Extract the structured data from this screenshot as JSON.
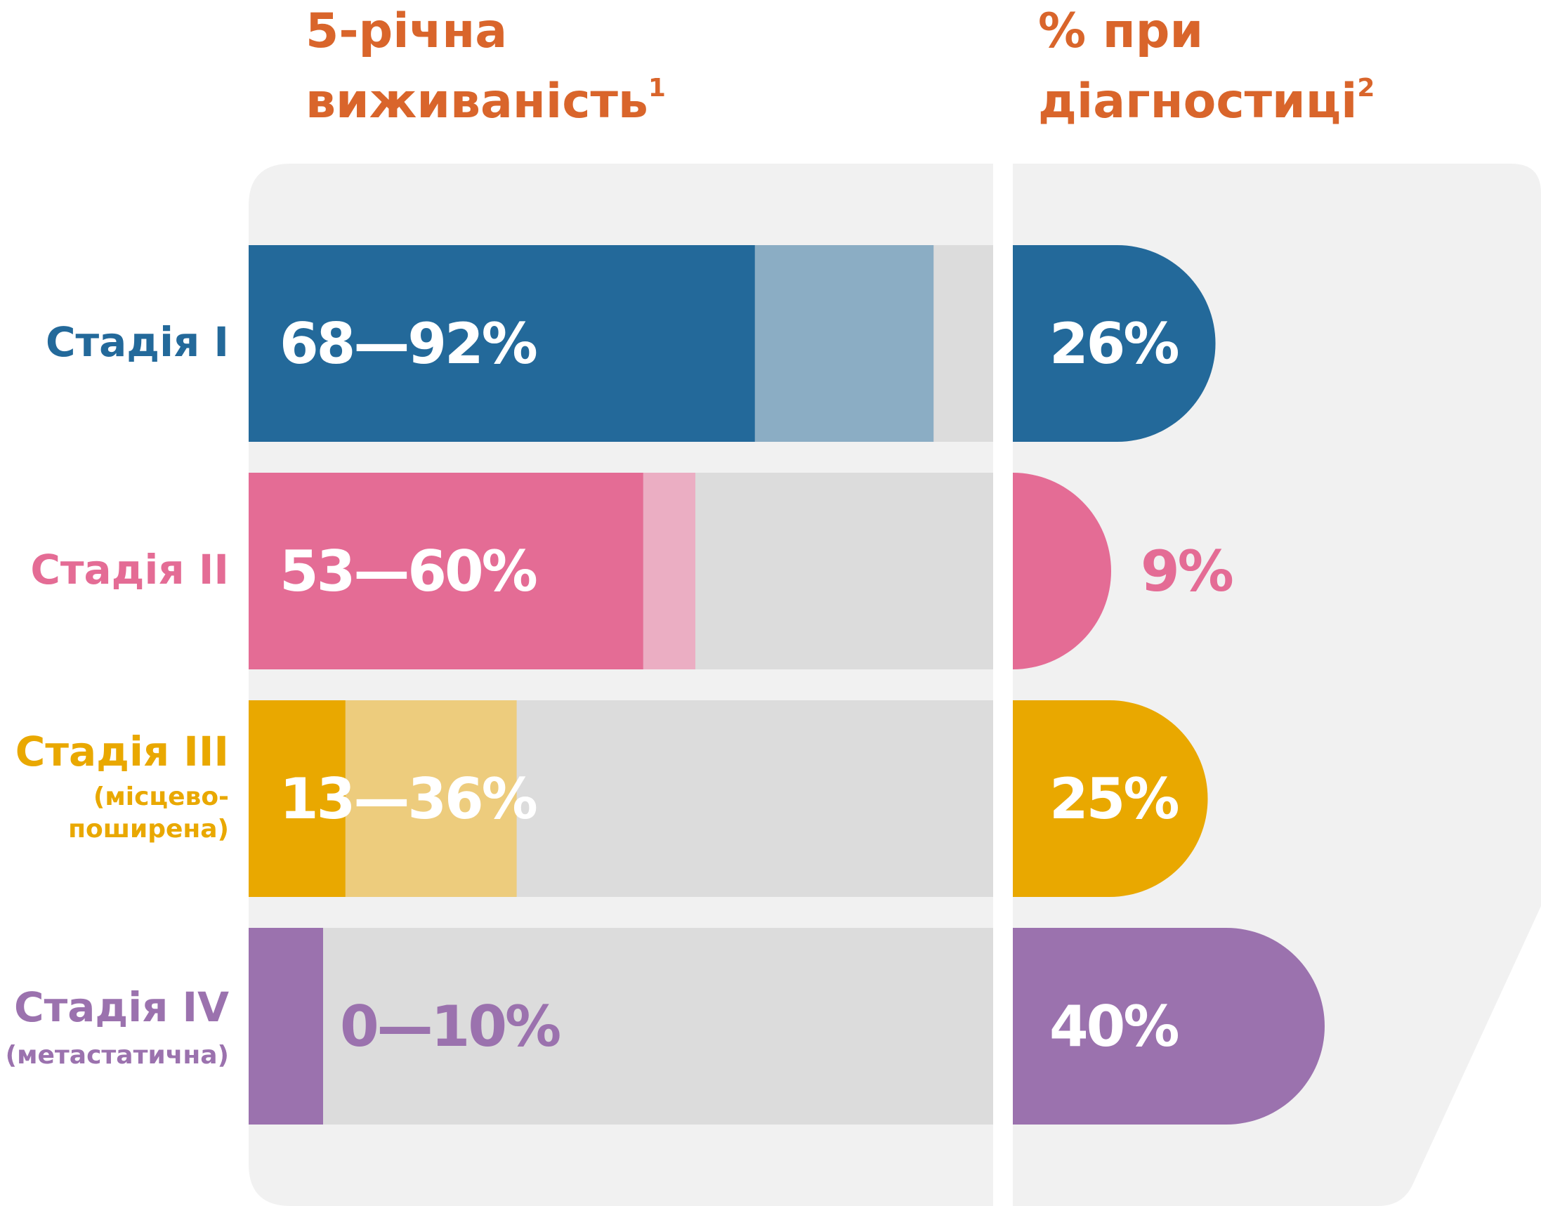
{
  "headers": {
    "survival_line1": "5-річна",
    "survival_line2": "виживаність",
    "survival_sup": "1",
    "diagnosis_line1": "% при",
    "diagnosis_line2": "діагностиці",
    "diagnosis_sup": "2"
  },
  "stages": [
    {
      "label": "Стадія I",
      "sub1": "",
      "sub2": "",
      "color": "#23699a"
    },
    {
      "label": "Стадія II",
      "sub1": "",
      "sub2": "",
      "color": "#e46c95"
    },
    {
      "label": "Стадія III",
      "sub1": "(місцево-",
      "sub2": "поширена)",
      "color": "#e9a800"
    },
    {
      "label": "Стадія IV",
      "sub1": "(метастатична)",
      "sub2": "",
      "color": "#9b72ae"
    }
  ],
  "chart_data": {
    "type": "bar",
    "categories": [
      "Стадія I",
      "Стадія II",
      "Стадія III",
      "Стадія IV"
    ],
    "survival": {
      "ranges": [
        [
          68,
          92
        ],
        [
          53,
          60
        ],
        [
          13,
          36
        ],
        [
          0,
          10
        ]
      ],
      "labels": [
        "68—92%",
        "53—60%",
        "13—36%",
        "0—10%"
      ],
      "xlim": [
        0,
        100
      ]
    },
    "diagnosis": {
      "values": [
        26,
        9,
        25,
        40
      ],
      "labels": [
        "26%",
        "9%",
        "25%",
        "40%"
      ]
    },
    "colors": {
      "stage_dark": [
        "#23699a",
        "#e46c95",
        "#e9a800",
        "#9b72ae"
      ],
      "stage_light": [
        "#8badc4",
        "#ebaec3",
        "#edcc7d",
        "#9b72ae"
      ],
      "track": "#dcdcdc",
      "panel": "#f1f1f1",
      "header": "#d9652b"
    }
  }
}
